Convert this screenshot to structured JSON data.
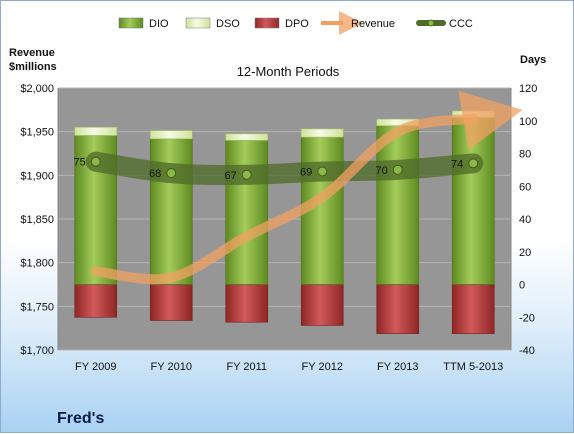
{
  "chart_data": {
    "type": "bar",
    "title": "12-Month Periods",
    "company": "Fred's",
    "left_axis_title": [
      "Revenue",
      "$millions"
    ],
    "right_axis_title": "Days",
    "categories": [
      "FY 2009",
      "FY 2010",
      "FY 2011",
      "FY 2012",
      "FY 2013",
      "TTM 5-2013"
    ],
    "left_axis": {
      "min": 1700,
      "max": 2000,
      "step": 50,
      "tick_labels": [
        "$1,700",
        "$1,750",
        "$1,800",
        "$1,850",
        "$1,900",
        "$1,950",
        "$2,000"
      ]
    },
    "right_axis": {
      "min": -40,
      "max": 120,
      "step": 20,
      "tick_labels": [
        "-40",
        "-20",
        "0",
        "20",
        "40",
        "60",
        "80",
        "100",
        "120"
      ]
    },
    "legend": {
      "position": "top",
      "items": [
        "DIO",
        "DSO",
        "DPO",
        "Revenue",
        "CCC"
      ]
    },
    "series": [
      {
        "name": "DIO",
        "axis": "days",
        "values": [
          91,
          89,
          88,
          90,
          97,
          102
        ]
      },
      {
        "name": "DSO",
        "axis": "days",
        "values": [
          5,
          5,
          4,
          5,
          4,
          4
        ]
      },
      {
        "name": "DPO",
        "axis": "days",
        "values": [
          -20,
          -22,
          -23,
          -25,
          -30,
          -30
        ]
      },
      {
        "name": "Revenue",
        "axis": "revenue",
        "values": [
          1790,
          1783,
          1830,
          1875,
          1950,
          1965
        ]
      },
      {
        "name": "CCC",
        "axis": "days",
        "values": [
          75,
          68,
          67,
          69,
          70,
          74
        ]
      }
    ],
    "ccc_labels": [
      "75",
      "68",
      "67",
      "69",
      "70",
      "74"
    ],
    "colors": {
      "DIO": "#7aa834",
      "DSO": "#e4f1c0",
      "DPO": "#b73a3a",
      "Revenue": "#f2a062",
      "CCC": "#4f6b2a",
      "plot_bg": "#969696"
    },
    "grid": true
  }
}
